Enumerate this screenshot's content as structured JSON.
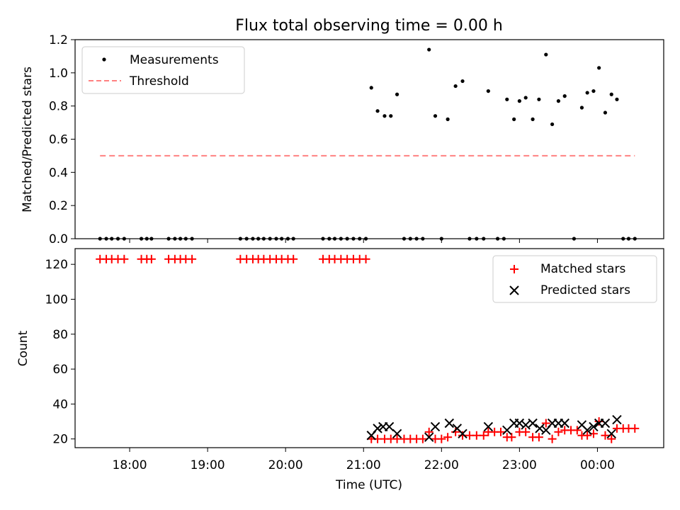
{
  "chart_data": [
    {
      "type": "scatter",
      "title": "Flux total observing time = 0.00 h",
      "xlabel": "",
      "ylabel": "Matched/Predicted stars",
      "ylim": [
        0,
        1.2
      ],
      "xlim": [
        17.3,
        24.85
      ],
      "yticks": [
        0,
        0.2,
        0.4,
        0.6,
        0.8,
        1.0,
        1.2
      ],
      "ytick_labels": [
        "0.0",
        "0.2",
        "0.4",
        "0.6",
        "0.8",
        "1.0",
        "1.2"
      ],
      "legend_position": "top-left",
      "series": [
        {
          "name": "Measurements",
          "marker": "dot",
          "color": "#000000",
          "x": [
            17.62,
            17.7,
            17.77,
            17.85,
            17.93,
            18.15,
            18.22,
            18.28,
            18.5,
            18.58,
            18.65,
            18.72,
            18.8,
            19.42,
            19.5,
            19.58,
            19.65,
            19.72,
            19.8,
            19.88,
            19.95,
            20.03,
            20.1,
            20.48,
            20.56,
            20.63,
            20.71,
            20.79,
            20.87,
            20.95,
            21.03,
            21.1,
            21.18,
            21.27,
            21.35,
            21.43,
            21.52,
            21.6,
            21.68,
            21.76,
            21.84,
            21.92,
            22.0,
            22.08,
            22.18,
            22.27,
            22.36,
            22.45,
            22.54,
            22.6,
            22.72,
            22.8,
            22.84,
            22.93,
            23.0,
            23.08,
            23.17,
            23.25,
            23.34,
            23.42,
            23.5,
            23.58,
            23.7,
            23.8,
            23.87,
            23.95,
            24.02,
            24.1,
            24.18,
            24.25,
            24.33,
            24.4,
            24.48
          ],
          "values": [
            0,
            0,
            0,
            0,
            0,
            0,
            0,
            0,
            0,
            0,
            0,
            0,
            0,
            0,
            0,
            0,
            0,
            0,
            0,
            0,
            0,
            0,
            0,
            0,
            0,
            0,
            0,
            0,
            0,
            0,
            0,
            0.91,
            0.77,
            0.74,
            0.74,
            0.87,
            0,
            0,
            0,
            0,
            1.14,
            0.74,
            0,
            0.72,
            0.92,
            0.95,
            0,
            0,
            0,
            0.89,
            0,
            0,
            0.84,
            0.72,
            0.83,
            0.85,
            0.72,
            0.84,
            1.11,
            0.69,
            0.83,
            0.86,
            0,
            0.79,
            0.88,
            0.89,
            1.03,
            0.76,
            0.87,
            0.84,
            0,
            0,
            0
          ]
        },
        {
          "name": "Threshold",
          "marker": "dashed-line",
          "color": "#ff8080",
          "x": [
            17.62,
            24.48
          ],
          "values": [
            0.5,
            0.5
          ]
        }
      ]
    },
    {
      "type": "scatter",
      "title": "",
      "xlabel": "Time (UTC)",
      "ylabel": "Count",
      "ylim": [
        15,
        129
      ],
      "xlim": [
        17.3,
        24.85
      ],
      "xticks": [
        18,
        19,
        20,
        21,
        22,
        23,
        24
      ],
      "xtick_labels": [
        "18:00",
        "19:00",
        "20:00",
        "21:00",
        "22:00",
        "23:00",
        "00:00"
      ],
      "yticks": [
        20,
        40,
        60,
        80,
        100,
        120
      ],
      "ytick_labels": [
        "20",
        "40",
        "60",
        "80",
        "100",
        "120"
      ],
      "legend_position": "top-right",
      "series": [
        {
          "name": "Matched stars",
          "marker": "plus",
          "color": "#ff0000",
          "x": [
            17.62,
            17.7,
            17.77,
            17.85,
            17.93,
            18.15,
            18.22,
            18.28,
            18.5,
            18.58,
            18.65,
            18.72,
            18.8,
            19.42,
            19.5,
            19.58,
            19.65,
            19.72,
            19.8,
            19.88,
            19.95,
            20.03,
            20.1,
            20.48,
            20.56,
            20.63,
            20.71,
            20.79,
            20.87,
            20.95,
            21.03,
            21.1,
            21.18,
            21.27,
            21.35,
            21.43,
            21.52,
            21.6,
            21.68,
            21.76,
            21.84,
            21.92,
            22.0,
            22.08,
            22.18,
            22.27,
            22.36,
            22.45,
            22.54,
            22.6,
            22.68,
            22.76,
            22.84,
            22.9,
            23.0,
            23.08,
            23.17,
            23.25,
            23.34,
            23.42,
            23.5,
            23.58,
            23.66,
            23.74,
            23.8,
            23.87,
            23.95,
            24.02,
            24.1,
            24.18,
            24.25,
            24.33,
            24.4,
            24.48
          ],
          "values": [
            123,
            123,
            123,
            123,
            123,
            123,
            123,
            123,
            123,
            123,
            123,
            123,
            123,
            123,
            123,
            123,
            123,
            123,
            123,
            123,
            123,
            123,
            123,
            123,
            123,
            123,
            123,
            123,
            123,
            123,
            123,
            20,
            20,
            20,
            20,
            20,
            20,
            20,
            20,
            20,
            24,
            20,
            20,
            21,
            24,
            22,
            22,
            22,
            22,
            24,
            24,
            24,
            21,
            21,
            24,
            24,
            21,
            21,
            29,
            20,
            24,
            25,
            25,
            25,
            22,
            22,
            23,
            30,
            22,
            20,
            26,
            26,
            26,
            26
          ]
        },
        {
          "name": "Predicted stars",
          "marker": "x",
          "color": "#000000",
          "x": [
            21.1,
            21.18,
            21.25,
            21.33,
            21.43,
            21.84,
            21.92,
            22.1,
            22.2,
            22.27,
            22.6,
            22.84,
            22.93,
            23.0,
            23.08,
            23.17,
            23.26,
            23.34,
            23.42,
            23.5,
            23.58,
            23.8,
            23.87,
            23.95,
            24.02,
            24.1,
            24.18,
            24.25
          ],
          "values": [
            22,
            26,
            27,
            27,
            23,
            21,
            27,
            29,
            26,
            23,
            27,
            25,
            29,
            29,
            28,
            29,
            26,
            25,
            29,
            29,
            29,
            28,
            25,
            27,
            29,
            29,
            23,
            31
          ]
        }
      ]
    }
  ]
}
